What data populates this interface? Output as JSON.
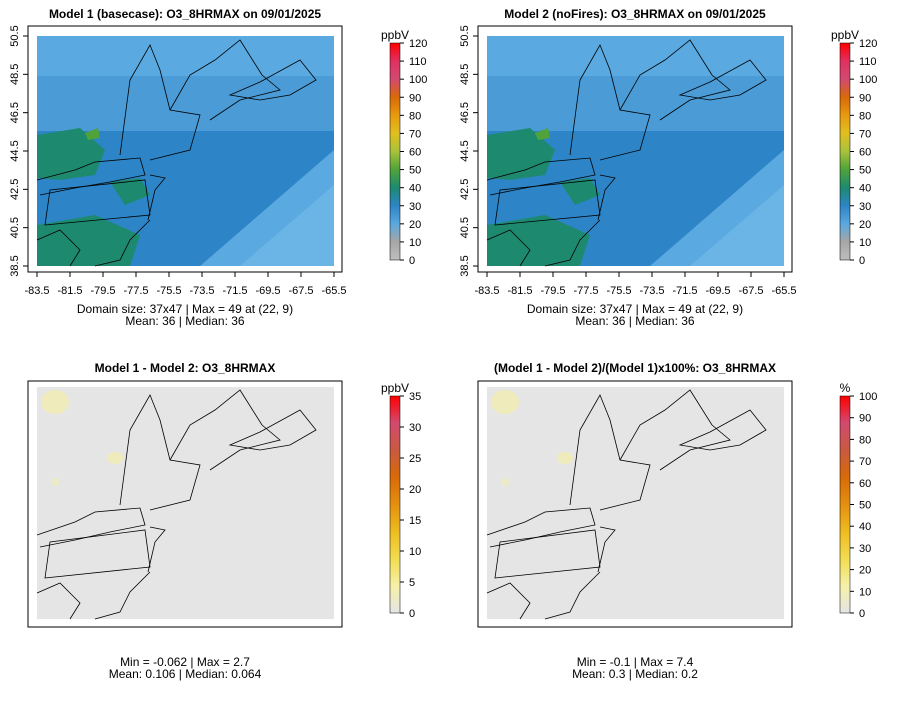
{
  "chart_data": [
    {
      "type": "heatmap",
      "title": "Model 1 (basecase): O3_8HRMAX on 09/01/2025",
      "xticks": [
        "-83.5",
        "-81.5",
        "-79.5",
        "-77.5",
        "-75.5",
        "-73.5",
        "-71.5",
        "-69.5",
        "-67.5",
        "-65.5"
      ],
      "yticks": [
        "38.5",
        "40.5",
        "42.5",
        "44.5",
        "46.5",
        "48.5",
        "50.5"
      ],
      "xlim": [
        -83.5,
        -65.5
      ],
      "ylim": [
        38.5,
        50.5
      ],
      "colorbar": {
        "unit": "ppbV",
        "ticks": [
          "0",
          "10",
          "20",
          "30",
          "40",
          "50",
          "60",
          "70",
          "80",
          "90",
          "100",
          "110",
          "120"
        ],
        "range": [
          0,
          120
        ]
      },
      "caption": [
        "Domain size: 37x47 | Max = 49 at (22, 9)",
        "Mean: 36 |  Median: 36"
      ],
      "stats": {
        "domain_cols": 37,
        "domain_rows": 47,
        "max": 49,
        "max_cell": [
          22,
          9
        ],
        "mean": 36,
        "median": 36
      },
      "fill_color": "#2d84c6"
    },
    {
      "type": "heatmap",
      "title": "Model 2 (noFires): O3_8HRMAX on 09/01/2025",
      "xticks": [
        "-83.5",
        "-81.5",
        "-79.5",
        "-77.5",
        "-75.5",
        "-73.5",
        "-71.5",
        "-69.5",
        "-67.5",
        "-65.5"
      ],
      "yticks": [
        "38.5",
        "40.5",
        "42.5",
        "44.5",
        "46.5",
        "48.5",
        "50.5"
      ],
      "xlim": [
        -83.5,
        -65.5
      ],
      "ylim": [
        38.5,
        50.5
      ],
      "colorbar": {
        "unit": "ppbV",
        "ticks": [
          "0",
          "10",
          "20",
          "30",
          "40",
          "50",
          "60",
          "70",
          "80",
          "90",
          "100",
          "110",
          "120"
        ],
        "range": [
          0,
          120
        ]
      },
      "caption": [
        "Domain size: 37x47 | Max = 49 at (22, 9)",
        "Mean: 36 |  Median: 36"
      ],
      "stats": {
        "domain_cols": 37,
        "domain_rows": 47,
        "max": 49,
        "max_cell": [
          22,
          9
        ],
        "mean": 36,
        "median": 36
      },
      "fill_color": "#2d84c6"
    },
    {
      "type": "heatmap",
      "title": "Model 1 - Model 2: O3_8HRMAX",
      "xticks": [],
      "yticks": [],
      "colorbar": {
        "unit": "ppbV",
        "ticks": [
          "0",
          "5",
          "10",
          "15",
          "20",
          "25",
          "30",
          "35"
        ],
        "range": [
          0,
          35
        ]
      },
      "caption": [
        "Min = -0.062 | Max = 2.7",
        "Mean: 0.106 |  Median: 0.064"
      ],
      "stats": {
        "min": -0.062,
        "max": 2.7,
        "mean": 0.106,
        "median": 0.064
      },
      "fill_color": "#e5e5e5"
    },
    {
      "type": "heatmap",
      "title": "(Model 1 - Model 2)/(Model 1)x100%: O3_8HRMAX",
      "xticks": [],
      "yticks": [],
      "colorbar": {
        "unit": "%",
        "ticks": [
          "0",
          "10",
          "20",
          "30",
          "40",
          "50",
          "60",
          "70",
          "80",
          "90",
          "100"
        ],
        "range": [
          0,
          100
        ]
      },
      "caption": [
        "Min = -0.1 | Max = 7.4",
        "Mean: 0.3 |  Median: 0.2"
      ],
      "stats": {
        "min": -0.1,
        "max": 7.4,
        "mean": 0.3,
        "median": 0.2
      },
      "fill_color": "#e5e5e5"
    }
  ],
  "colors": {
    "ozone_scale": [
      "#bebebe",
      "#a6a6a6",
      "#5aa9e0",
      "#2d84c6",
      "#1d8a70",
      "#4fa33a",
      "#a8c23a",
      "#e0c020",
      "#e89a10",
      "#d86a08",
      "#d24a70",
      "#e03060",
      "#ff0000"
    ],
    "diff_scale": [
      "#e5e5e5",
      "#f6f0a8",
      "#f2dc50",
      "#eebc20",
      "#e49010",
      "#d86a08",
      "#c85a40",
      "#d24a70",
      "#ff0000"
    ],
    "ocean_light": "#5aa9e0",
    "ocean_mid": "#2d84c6",
    "land_green": "#1d8a70",
    "diff_background": "#e5e5e5",
    "diff_hotspot": "#f1ecb0"
  }
}
